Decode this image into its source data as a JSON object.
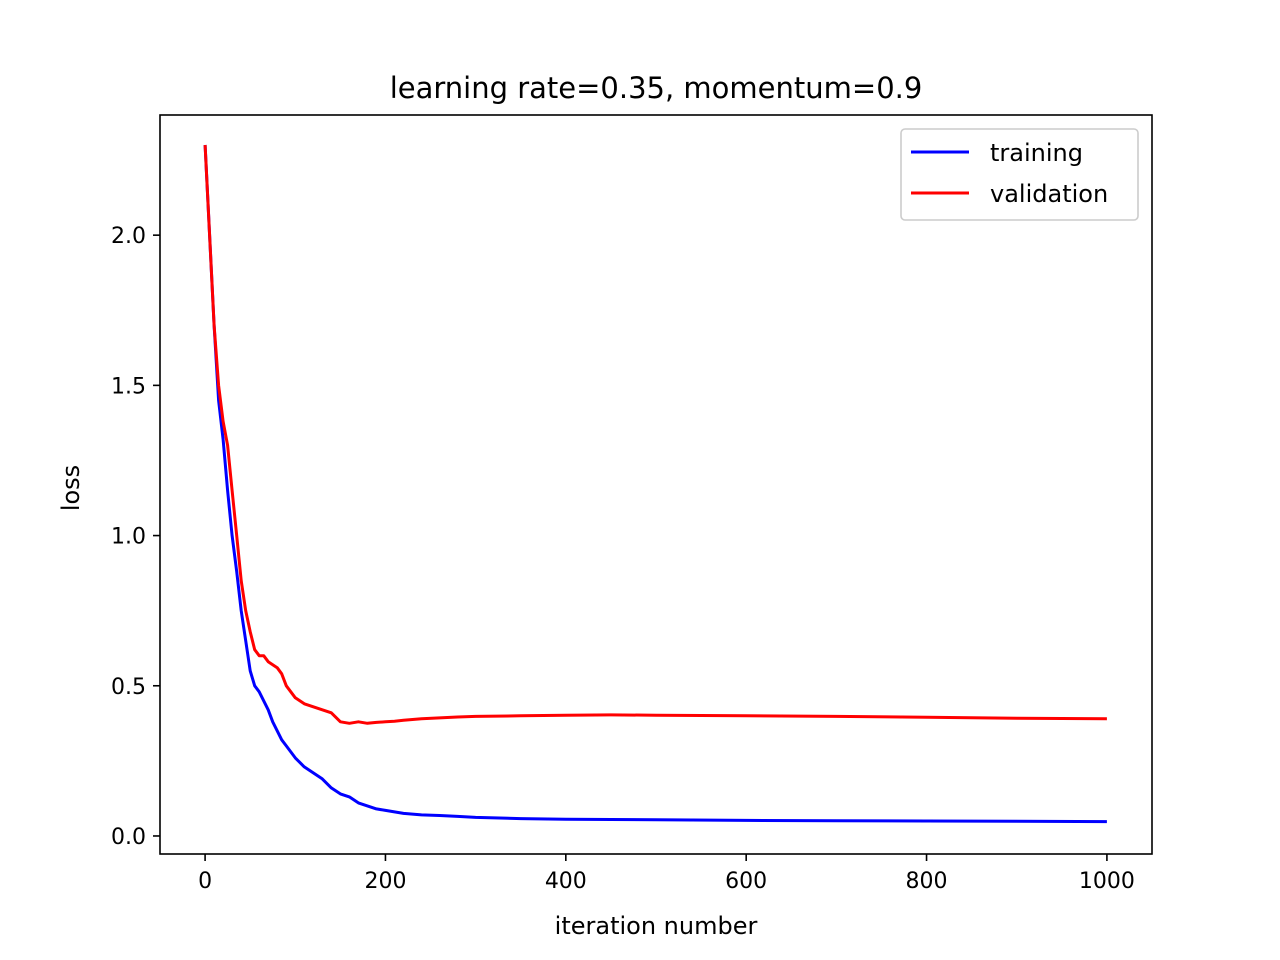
{
  "chart_data": {
    "type": "line",
    "title": "learning rate=0.35, momentum=0.9",
    "xlabel": "iteration number",
    "ylabel": "loss",
    "xlim": [
      -50,
      1050
    ],
    "ylim": [
      -0.06,
      2.4
    ],
    "xticks": [
      0,
      200,
      400,
      600,
      800,
      1000
    ],
    "xtick_labels": [
      "0",
      "200",
      "400",
      "600",
      "800",
      "1000"
    ],
    "yticks": [
      0.0,
      0.5,
      1.0,
      1.5,
      2.0
    ],
    "ytick_labels": [
      "0.0",
      "0.5",
      "1.0",
      "1.5",
      "2.0"
    ],
    "grid": false,
    "legend_position": "top-right",
    "series": [
      {
        "name": "training",
        "color": "#0000ff",
        "x": [
          0,
          5,
          10,
          15,
          20,
          25,
          30,
          35,
          40,
          45,
          50,
          55,
          60,
          65,
          70,
          75,
          80,
          85,
          90,
          95,
          100,
          110,
          120,
          130,
          140,
          150,
          160,
          170,
          180,
          190,
          200,
          210,
          220,
          240,
          260,
          280,
          300,
          350,
          400,
          450,
          500,
          600,
          700,
          800,
          900,
          1000
        ],
        "y": [
          2.3,
          2.0,
          1.7,
          1.45,
          1.32,
          1.15,
          1.0,
          0.88,
          0.75,
          0.65,
          0.55,
          0.5,
          0.48,
          0.45,
          0.42,
          0.38,
          0.35,
          0.32,
          0.3,
          0.28,
          0.26,
          0.23,
          0.21,
          0.19,
          0.16,
          0.14,
          0.13,
          0.11,
          0.1,
          0.09,
          0.085,
          0.08,
          0.075,
          0.07,
          0.068,
          0.065,
          0.062,
          0.058,
          0.056,
          0.055,
          0.054,
          0.052,
          0.051,
          0.05,
          0.049,
          0.048
        ]
      },
      {
        "name": "validation",
        "color": "#ff0000",
        "x": [
          0,
          5,
          10,
          15,
          20,
          25,
          30,
          35,
          40,
          45,
          50,
          55,
          60,
          65,
          70,
          75,
          80,
          85,
          90,
          95,
          100,
          110,
          120,
          130,
          140,
          150,
          160,
          170,
          180,
          190,
          200,
          210,
          220,
          240,
          260,
          280,
          300,
          350,
          400,
          450,
          500,
          600,
          700,
          800,
          900,
          1000
        ],
        "y": [
          2.3,
          2.0,
          1.7,
          1.5,
          1.38,
          1.3,
          1.15,
          1.0,
          0.85,
          0.75,
          0.68,
          0.62,
          0.6,
          0.6,
          0.58,
          0.57,
          0.56,
          0.54,
          0.5,
          0.48,
          0.46,
          0.44,
          0.43,
          0.42,
          0.41,
          0.38,
          0.375,
          0.38,
          0.375,
          0.378,
          0.38,
          0.382,
          0.385,
          0.39,
          0.393,
          0.396,
          0.398,
          0.4,
          0.402,
          0.403,
          0.402,
          0.4,
          0.398,
          0.395,
          0.392,
          0.39
        ]
      }
    ]
  }
}
